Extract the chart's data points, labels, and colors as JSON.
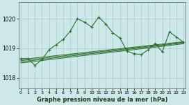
{
  "title": "Graphe pression niveau de la mer (hPa)",
  "bg_color": "#cce8e8",
  "grid_color": "#aacccc",
  "line_color": "#2d6e2d",
  "xlim": [
    -0.3,
    23.3
  ],
  "ylim": [
    1017.65,
    1020.55
  ],
  "yticks": [
    1018,
    1019,
    1020
  ],
  "xticks": [
    0,
    1,
    2,
    3,
    4,
    5,
    6,
    7,
    8,
    9,
    10,
    11,
    12,
    13,
    14,
    15,
    16,
    17,
    18,
    19,
    20,
    21,
    22,
    23
  ],
  "main_y": [
    1018.65,
    1018.65,
    1018.42,
    1018.62,
    1018.95,
    1019.12,
    1019.3,
    1019.58,
    1020.0,
    1019.88,
    1019.72,
    1020.05,
    1019.82,
    1019.52,
    1019.35,
    1018.9,
    1018.82,
    1018.78,
    1018.95,
    1019.15,
    1018.88,
    1019.55,
    1019.38,
    1019.2
  ],
  "trend_lines": [
    [
      1018.62,
      1019.22
    ],
    [
      1018.58,
      1019.2
    ],
    [
      1018.54,
      1019.18
    ],
    [
      1018.5,
      1019.15
    ]
  ]
}
